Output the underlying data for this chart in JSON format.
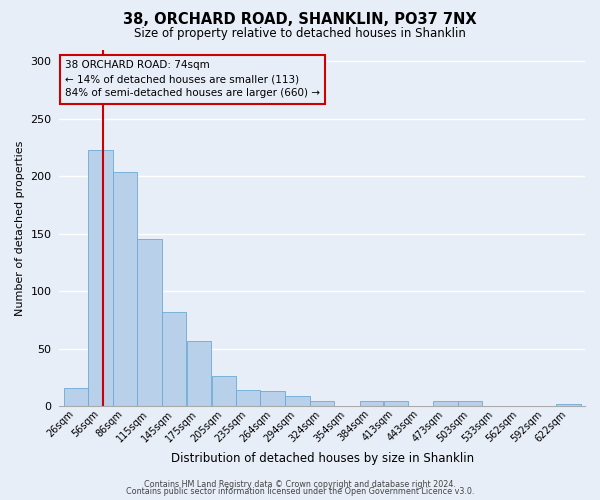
{
  "title": "38, ORCHARD ROAD, SHANKLIN, PO37 7NX",
  "subtitle": "Size of property relative to detached houses in Shanklin",
  "xlabel": "Distribution of detached houses by size in Shanklin",
  "ylabel": "Number of detached properties",
  "bar_labels": [
    "26sqm",
    "56sqm",
    "86sqm",
    "115sqm",
    "145sqm",
    "175sqm",
    "205sqm",
    "235sqm",
    "264sqm",
    "294sqm",
    "324sqm",
    "354sqm",
    "384sqm",
    "413sqm",
    "443sqm",
    "473sqm",
    "503sqm",
    "533sqm",
    "562sqm",
    "592sqm",
    "622sqm"
  ],
  "bar_heights": [
    16,
    223,
    204,
    145,
    82,
    57,
    26,
    14,
    13,
    9,
    4,
    0,
    4,
    4,
    0,
    4,
    4,
    0,
    0,
    0,
    2
  ],
  "bar_color": "#b8d0ea",
  "bar_edge_color": "#6aaad4",
  "bg_color": "#e8eef8",
  "grid_color": "#ffffff",
  "vline_x_bin_index": 1,
  "vline_color": "#cc0000",
  "annotation_text": "38 ORCHARD ROAD: 74sqm\n← 14% of detached houses are smaller (113)\n84% of semi-detached houses are larger (660) →",
  "annotation_box_color": "#cc0000",
  "ylim": [
    0,
    310
  ],
  "yticks": [
    0,
    50,
    100,
    150,
    200,
    250,
    300
  ],
  "footer_line1": "Contains HM Land Registry data © Crown copyright and database right 2024.",
  "footer_line2": "Contains public sector information licensed under the Open Government Licence v3.0.",
  "bin_edges": [
    26,
    56,
    86,
    115,
    145,
    175,
    205,
    235,
    264,
    294,
    324,
    354,
    384,
    413,
    443,
    473,
    503,
    533,
    562,
    592,
    622,
    652
  ],
  "vline_x_data": 74
}
